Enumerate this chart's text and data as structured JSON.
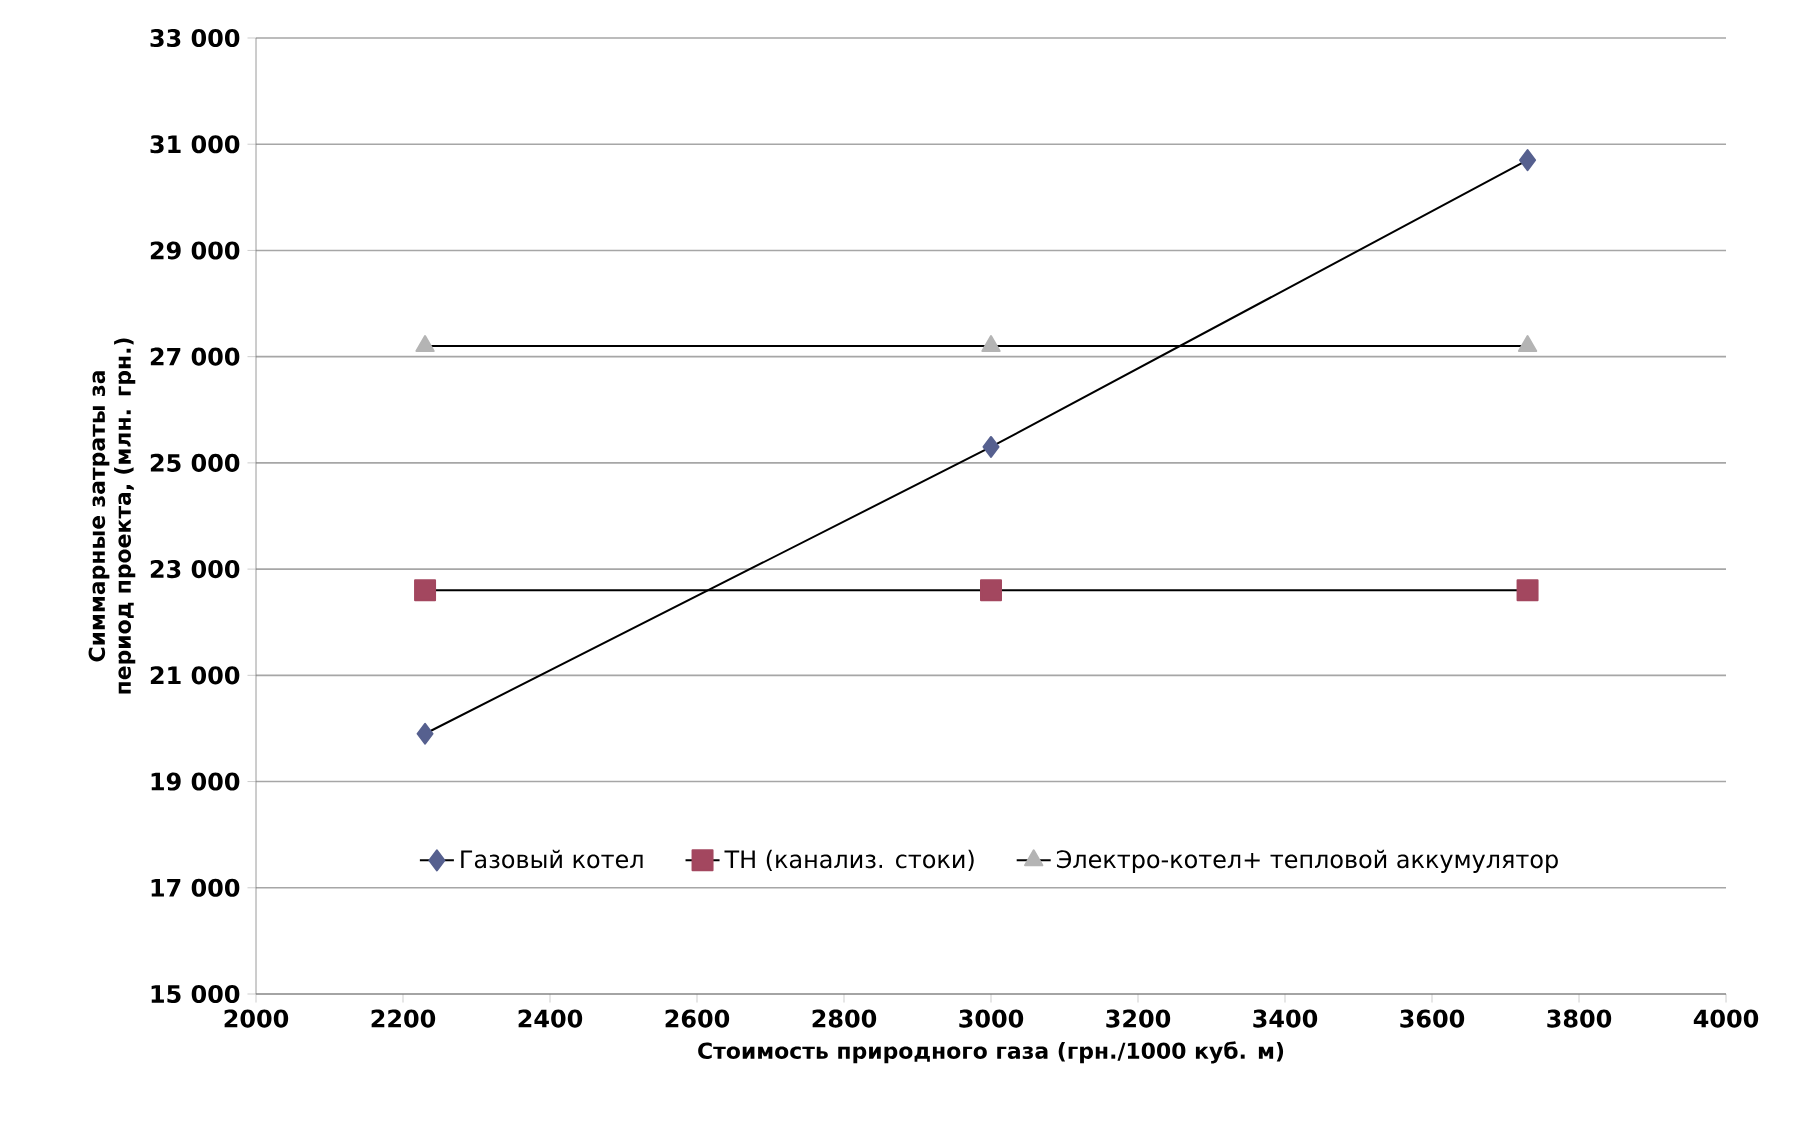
{
  "chart_data": {
    "type": "line",
    "xlabel": "Стоимость природного газа (грн./1000 куб. м)",
    "ylabel": "Симмарные затраты за период проекта, (млн. грн.)",
    "x": [
      2230,
      3000,
      3730
    ],
    "series": [
      {
        "name": "Газовый котел",
        "color": "#56608f",
        "marker": "diamond",
        "values": [
          19900,
          25300,
          30700
        ]
      },
      {
        "name": "ТН (канализ. стоки)",
        "color": "#a3475f",
        "marker": "square",
        "values": [
          22600,
          22600,
          22600
        ]
      },
      {
        "name": "Электро-котел+ тепловой аккумулятор",
        "color": "#b4b4b4",
        "marker": "triangle",
        "values": [
          27200,
          27200,
          27200
        ]
      }
    ],
    "xlim": [
      2000,
      4000
    ],
    "xticks": [
      2000,
      2200,
      2400,
      2600,
      2800,
      3000,
      3200,
      3400,
      3600,
      3800,
      4000
    ],
    "ylim": [
      15000,
      33000
    ],
    "yticks": [
      {
        "value": 15000,
        "label": "15 000"
      },
      {
        "value": 17000,
        "label": "17 000"
      },
      {
        "value": 19000,
        "label": "19 000"
      },
      {
        "value": 21000,
        "label": "21 000"
      },
      {
        "value": 23000,
        "label": "23 000"
      },
      {
        "value": 25000,
        "label": "25 000"
      },
      {
        "value": 27000,
        "label": "27 000"
      },
      {
        "value": 29000,
        "label": "29 000"
      },
      {
        "value": 31000,
        "label": "31 000"
      },
      {
        "value": 33000,
        "label": "33 000"
      }
    ],
    "grid": "y",
    "legend": "bottom",
    "line_style": "solid"
  }
}
